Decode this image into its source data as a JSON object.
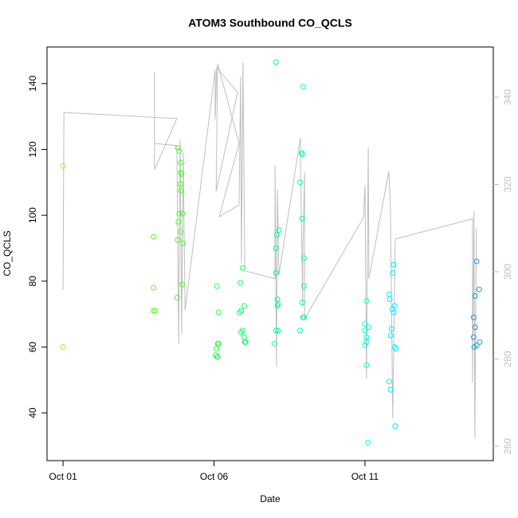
{
  "chart_data": {
    "type": "scatter",
    "title": "ATOM3 Southbound CO_QCLS",
    "x_label": "Date",
    "y_label": "CO_QCLS",
    "xlim": [
      -0.53,
      14.25
    ],
    "xticks": [
      {
        "value": 0,
        "label": "Oct 01"
      },
      {
        "value": 5,
        "label": "Oct 06"
      },
      {
        "value": 10,
        "label": "Oct 11"
      }
    ],
    "ylim": [
      25.5,
      151.1
    ],
    "yticks": [
      40,
      60,
      80,
      100,
      120,
      140
    ],
    "y2lim": [
      256.7,
      351.5
    ],
    "y2ticks": [
      260,
      280,
      300,
      320,
      340
    ],
    "series": [
      {
        "color": "#88ff33",
        "x": [
          0,
          0
        ],
        "values": [
          115,
          60
        ]
      },
      {
        "color": "#55ff11",
        "x": [
          3.0,
          3.0,
          3.0,
          3.05
        ],
        "values": [
          93.5,
          78,
          71,
          71
        ]
      },
      {
        "color": "#44ff22",
        "x": [
          3.8,
          3.85,
          3.9,
          3.9,
          3.92,
          3.88,
          3.9,
          3.85,
          3.95,
          3.82,
          3.9,
          3.8,
          3.98,
          3.95,
          3.78
        ],
        "values": [
          120.5,
          119.5,
          116,
          113,
          112.5,
          109.5,
          107.5,
          100.5,
          100.5,
          98,
          95,
          92.5,
          91.5,
          79,
          75
        ]
      },
      {
        "color": "#22ff44",
        "x": [
          5.1,
          5.15,
          5.12,
          5.15,
          5.08,
          5.05,
          5.1,
          5.12
        ],
        "values": [
          78.5,
          70.5,
          61,
          61,
          59.5,
          57.5,
          57,
          57
        ]
      },
      {
        "color": "#11ff66",
        "x": [
          5.88,
          5.95,
          6.0,
          5.9,
          5.85,
          5.95,
          5.9,
          6.0,
          6.02,
          6.05
        ],
        "values": [
          79.5,
          84,
          72.5,
          71,
          70.5,
          65,
          64.5,
          63,
          61.5,
          61.5
        ]
      },
      {
        "color": "#00ff88",
        "x": [
          7.05,
          7.15,
          7.08,
          7.05,
          7.05,
          7.1,
          7.12,
          7.1,
          7.05,
          7.12,
          7.0
        ],
        "values": [
          146.5,
          95.5,
          94,
          90,
          82.5,
          74.5,
          73,
          72.5,
          65,
          65,
          61
        ]
      },
      {
        "color": "#00ffaa",
        "x": [
          7.95,
          7.9,
          7.92,
          7.85,
          7.92,
          7.98,
          7.98,
          7.92,
          7.95,
          7.98,
          7.85
        ],
        "values": [
          139,
          119,
          118.5,
          110,
          99,
          87,
          78.5,
          73.5,
          69,
          69,
          65
        ]
      },
      {
        "color": "#00ffdd",
        "x": [
          10.05,
          10.0,
          10.12,
          10.0,
          10.05,
          10.05,
          10.0,
          10.05,
          10.1
        ],
        "values": [
          74,
          67,
          66,
          65,
          63,
          61.5,
          60.5,
          54.5,
          31
        ]
      },
      {
        "color": "#00eeff",
        "x": [
          10.95,
          10.92,
          10.8,
          10.82,
          10.98,
          10.9,
          10.95,
          10.88,
          10.85,
          10.98,
          11.02,
          10.8,
          10.85,
          11.0
        ],
        "values": [
          85,
          82.5,
          76,
          74.5,
          72.5,
          71.5,
          70.5,
          65.5,
          63.5,
          60,
          59.5,
          49.5,
          47,
          36
        ]
      },
      {
        "color": "#2299dd",
        "x": [
          13.7,
          13.78,
          13.65,
          13.6,
          13.65,
          13.6,
          13.8,
          13.7,
          13.62
        ],
        "values": [
          86,
          77.5,
          75.5,
          69,
          66,
          63,
          61.5,
          60.5,
          60
        ]
      },
      {
        "type": "line",
        "axis": "y2",
        "color": "#bebebe",
        "x": [
          0.0,
          0.03,
          3.77,
          3.03,
          3.03,
          3.03,
          3.77,
          3.83,
          3.88,
          3.93,
          3.98,
          4.04,
          5.04,
          5.04,
          5.09,
          5.78,
          5.07,
          5.12,
          5.83,
          5.17,
          5.83,
          5.88,
          5.91,
          5.96,
          6.02,
          7.02,
          7.02,
          7.07,
          7.1,
          7.15,
          7.86,
          7.86,
          7.94,
          7.94,
          8.0,
          8.0,
          9.95,
          10.0,
          10.05,
          10.11,
          10.13,
          10.79,
          10.84,
          10.92,
          10.98,
          11.0,
          13.56,
          13.56,
          13.61,
          13.64,
          13.69
        ],
        "values": [
          295.8,
          336.5,
          335.1,
          323.4,
          345.8,
          329.4,
          328.9,
          283.4,
          330.3,
          285.9,
          327.2,
          291.1,
          346.2,
          334.9,
          346.8,
          341.1,
          318.4,
          347.7,
          329.4,
          312.6,
          315.3,
          344.7,
          302.0,
          348.0,
          300.2,
          298.4,
          324.3,
          278.3,
          318.8,
          299.3,
          330.7,
          326.1,
          292.0,
          303.8,
          322.8,
          289.2,
          312.4,
          319.7,
          275.5,
          328.5,
          298.4,
          323.0,
          315.7,
          266.4,
          296.5,
          307.5,
          312.1,
          274.6,
          313.9,
          261.8,
          309.9
        ]
      }
    ]
  }
}
